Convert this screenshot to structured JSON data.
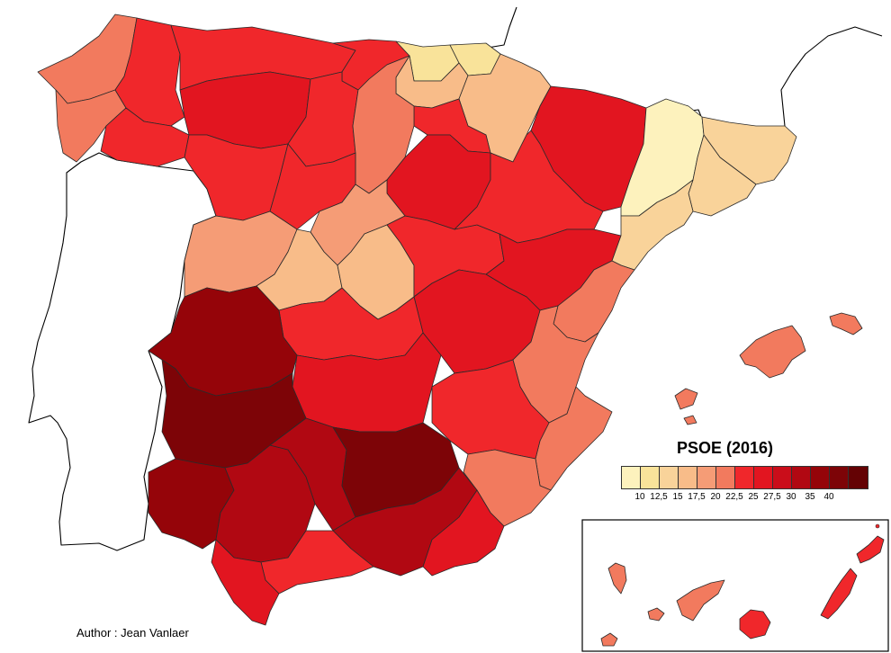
{
  "title": "PSOE (2016)",
  "author": "Author : Jean Vanlaer",
  "legend": {
    "colors": [
      "#fdf2bd",
      "#f9e39a",
      "#f9d39a",
      "#f8bc89",
      "#f59c76",
      "#f27a5e",
      "#f0272b",
      "#e21520",
      "#ca0d1a",
      "#b10812",
      "#950409",
      "#7d0407",
      "#640204"
    ],
    "ticks": [
      "10",
      "12,5",
      "15",
      "17,5",
      "20",
      "22,5",
      "25",
      "27,5",
      "30",
      "35",
      "40"
    ]
  }
}
